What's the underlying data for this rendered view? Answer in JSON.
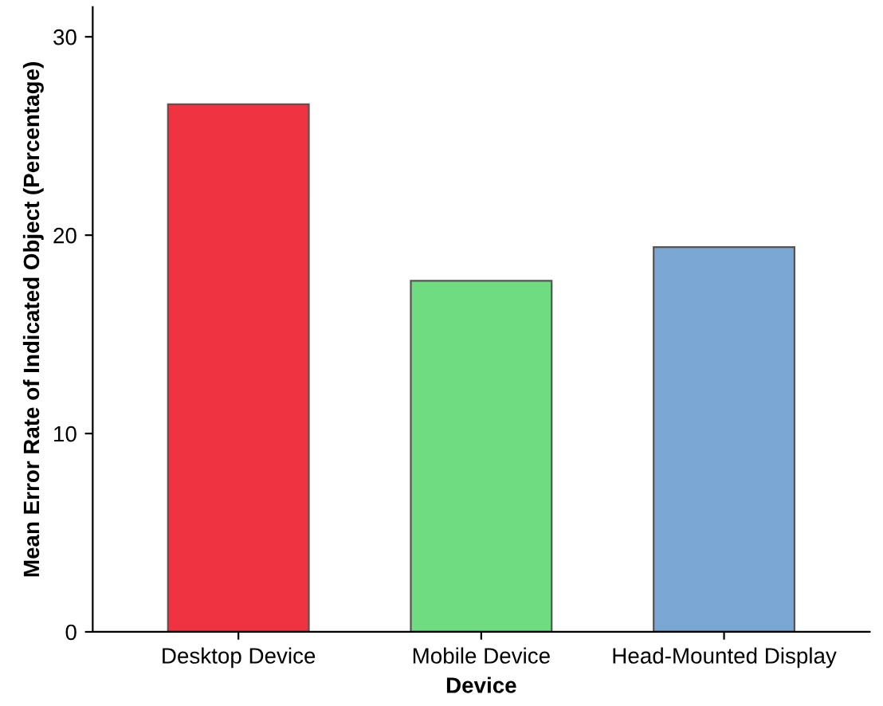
{
  "chart_data": {
    "type": "bar",
    "xlabel": "Device",
    "ylabel": "Mean Error Rate of Indicated Object (Percentage)",
    "categories": [
      "Desktop Device",
      "Mobile Device",
      "Head-Mounted Display"
    ],
    "values": [
      26.6,
      17.7,
      19.4
    ],
    "colors": [
      "#ef3340",
      "#6fdc82",
      "#7aa7d4"
    ],
    "ylim": [
      0,
      31.5
    ],
    "yticks": [
      0,
      10,
      20,
      30
    ],
    "grid": false,
    "legend": false
  }
}
